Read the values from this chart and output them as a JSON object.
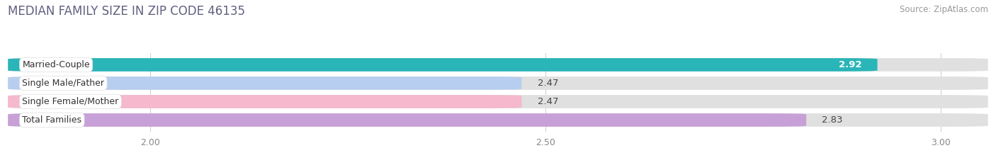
{
  "title": "MEDIAN FAMILY SIZE IN ZIP CODE 46135",
  "source": "Source: ZipAtlas.com",
  "categories": [
    "Married-Couple",
    "Single Male/Father",
    "Single Female/Mother",
    "Total Families"
  ],
  "values": [
    2.92,
    2.47,
    2.47,
    2.83
  ],
  "bar_colors": [
    "#2ab5b8",
    "#b8cef0",
    "#f5b8cc",
    "#c8a0d8"
  ],
  "xlim_min": 1.82,
  "xlim_max": 3.06,
  "xticks": [
    2.0,
    2.5,
    3.0
  ],
  "xtick_labels": [
    "2.00",
    "2.50",
    "3.00"
  ],
  "background_color": "#ffffff",
  "bar_background_color": "#e0e0e0",
  "title_fontsize": 12,
  "source_fontsize": 8.5,
  "bar_label_fontsize": 9.5,
  "cat_label_fontsize": 9,
  "tick_fontsize": 9,
  "bar_height": 0.72,
  "inside_label_threshold": 2.85
}
